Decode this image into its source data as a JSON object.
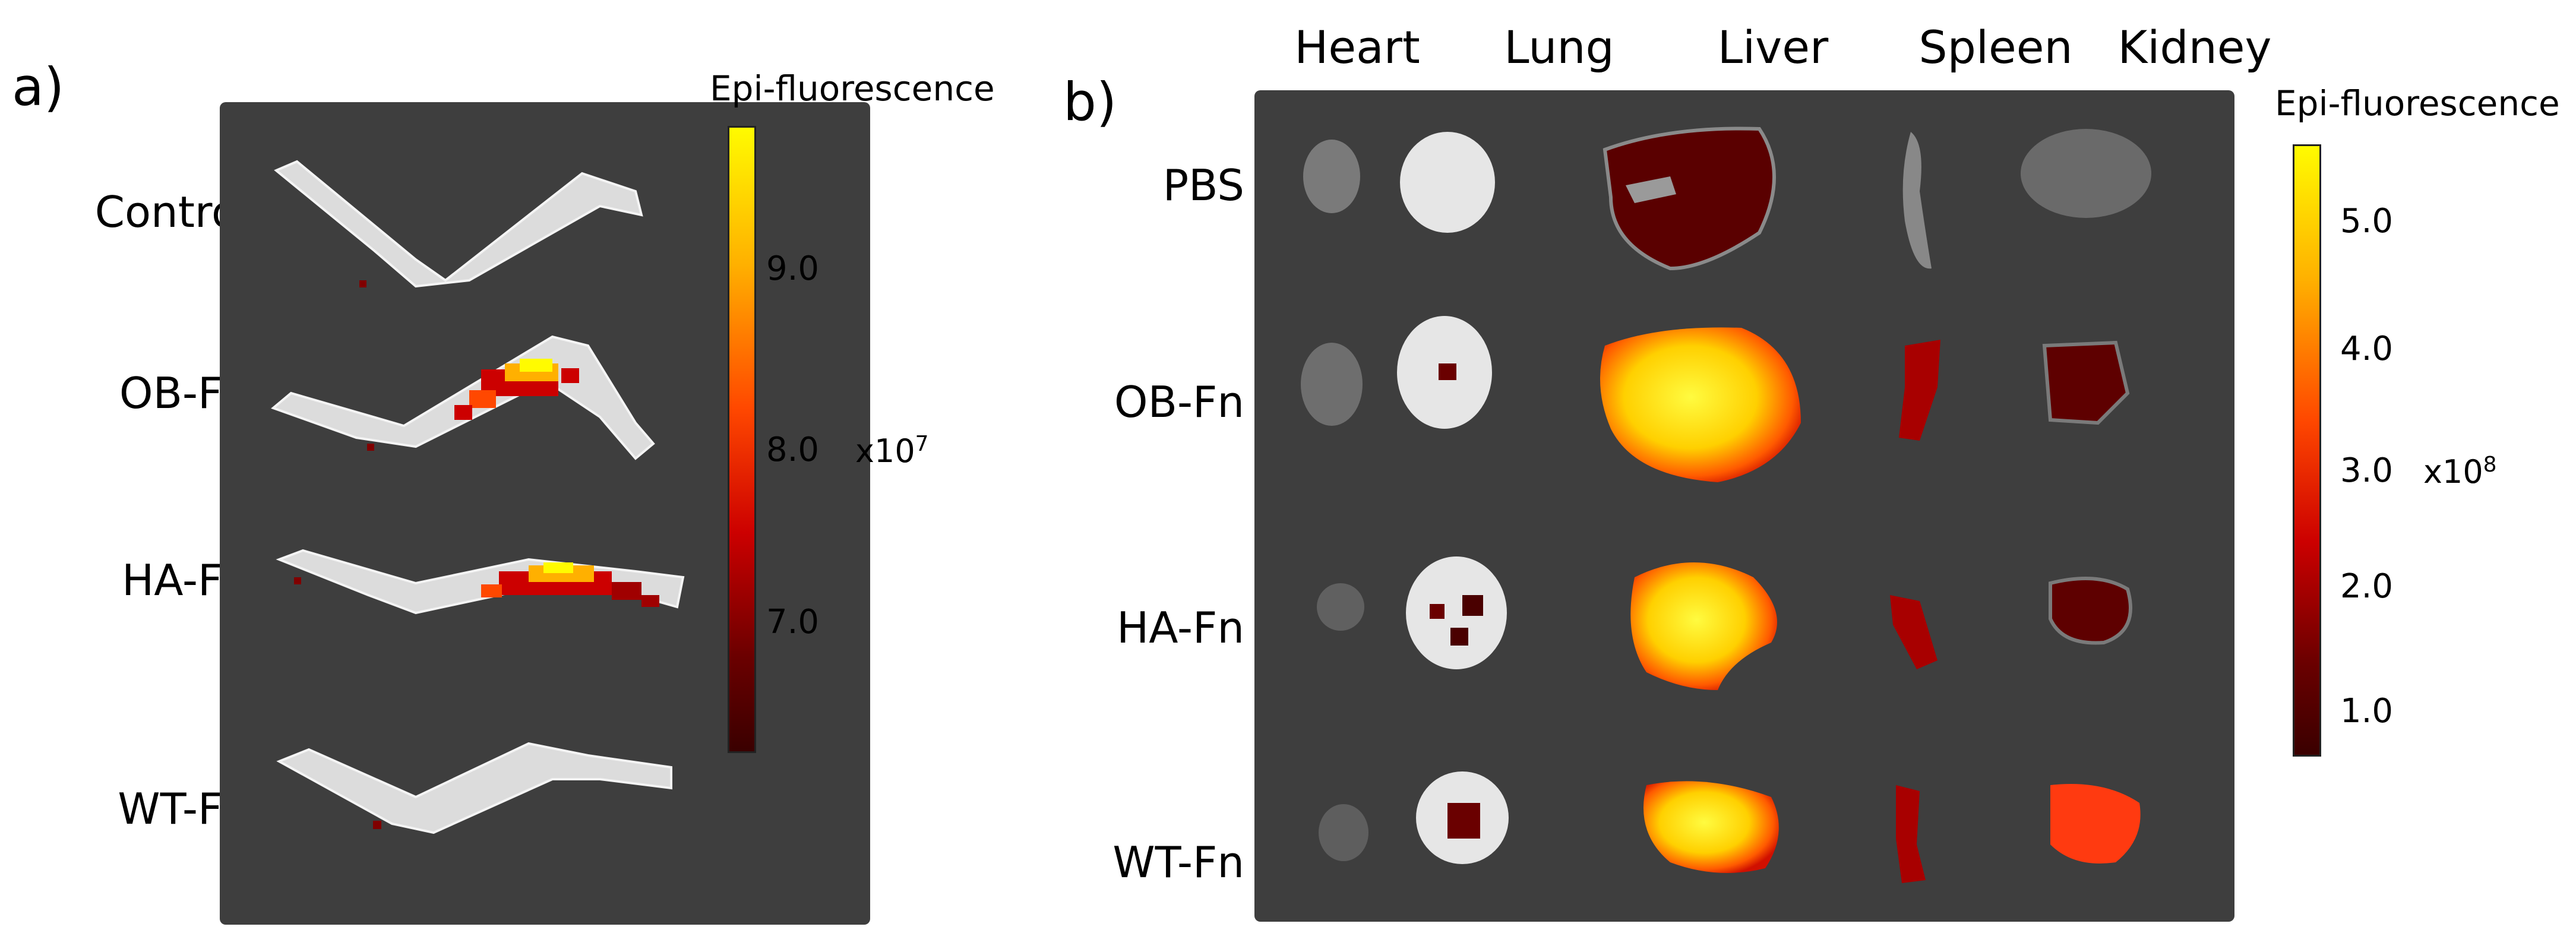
{
  "panel_a": {
    "letter": "a)",
    "row_labels": [
      "Control",
      "OB-Fn",
      "HA-Fn",
      "WT-Fn"
    ],
    "colorbar": {
      "title": "Epi-fluorescence",
      "ticks": [
        "9.0",
        "8.0",
        "7.0"
      ],
      "unit_text": "x10",
      "unit_exponent": "7",
      "colors": [
        "#fffb00",
        "#ffb000",
        "#ff4800",
        "#cc0000",
        "#6a0000",
        "#3a0000"
      ]
    }
  },
  "panel_b": {
    "letter": "b)",
    "column_labels": [
      "Heart",
      "Lung",
      "Liver",
      "Spleen",
      "Kidney"
    ],
    "row_labels": [
      "PBS",
      "OB-Fn",
      "HA-Fn",
      "WT-Fn"
    ],
    "colorbar": {
      "title": "Epi-fluorescence",
      "ticks": [
        "5.0",
        "4.0",
        "3.0",
        "2.0",
        "1.0"
      ],
      "unit_text": "x10",
      "unit_exponent": "8",
      "colors": [
        "#fffb00",
        "#ffb000",
        "#ff4800",
        "#cc0000",
        "#6a0000",
        "#3a0000"
      ]
    }
  }
}
